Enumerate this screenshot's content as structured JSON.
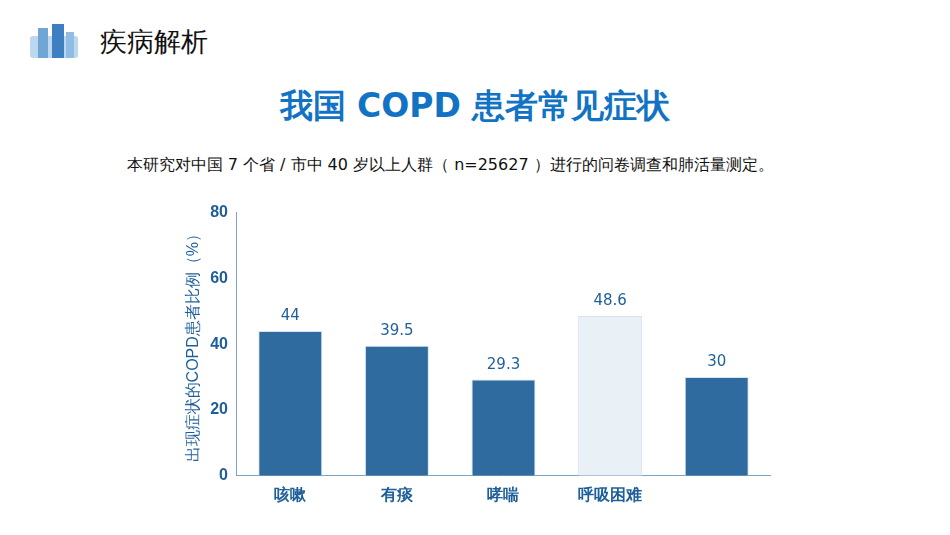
{
  "page": {
    "header": "疾病解析",
    "title": "我国 COPD 患者常见症状",
    "text": "本研究对中国 7 个省 / 市中 40 岁以上人群（ n=25627 ）进行的问卷调查和肺活量测定。"
  },
  "chart_data": {
    "type": "bar",
    "y_label": "出现症状的COPD患者比例（%）",
    "categories": [
      "咳嗽",
      "有痰",
      "哮喘",
      "呼吸困难",
      null
    ],
    "values": [
      44,
      39.5,
      29.3,
      48.6,
      30
    ],
    "colors": [
      "#2f6b9e",
      "#2f6b9e",
      "#2f6b9e",
      "#e9f0f6",
      "#2f6b9e"
    ],
    "ylim": [
      0,
      80
    ],
    "yticks": [
      0,
      20,
      40,
      60,
      80
    ],
    "grid": false,
    "data_labels": true
  }
}
